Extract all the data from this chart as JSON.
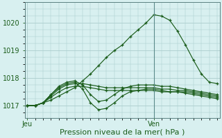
{
  "bg_color": "#d8f0f0",
  "grid_color": "#aacccc",
  "line_color": "#1a5c1a",
  "marker_color": "#1a5c1a",
  "xlabel": "Pression niveau de la mer( hPa )",
  "xlabel_color": "#1a5c1a",
  "tick_color": "#1a5c1a",
  "xtick_labels": [
    "Jeu",
    "Ven"
  ],
  "xtick_positions": [
    0,
    16
  ],
  "ylim": [
    1016.55,
    1020.75
  ],
  "yticks": [
    1017,
    1018,
    1019,
    1020
  ],
  "xlim": [
    -0.3,
    24.3
  ],
  "vline_x": 16,
  "series": [
    [
      1017.0,
      1017.0,
      1017.1,
      1017.2,
      1017.35,
      1017.5,
      1017.65,
      1017.9,
      1018.15,
      1018.45,
      1018.75,
      1019.0,
      1019.2,
      1019.5,
      1019.75,
      1020.0,
      1020.3,
      1020.25,
      1020.1,
      1019.7,
      1019.2,
      1018.65,
      1018.15,
      1017.85,
      1017.8
    ],
    [
      1017.0,
      1017.0,
      1017.1,
      1017.35,
      1017.6,
      1017.75,
      1017.8,
      1017.8,
      1017.75,
      1017.7,
      1017.65,
      1017.65,
      1017.65,
      1017.65,
      1017.65,
      1017.65,
      1017.65,
      1017.6,
      1017.6,
      1017.55,
      1017.55,
      1017.5,
      1017.45,
      1017.4,
      1017.35
    ],
    [
      1017.0,
      1017.0,
      1017.1,
      1017.3,
      1017.5,
      1017.65,
      1017.7,
      1017.7,
      1017.65,
      1017.6,
      1017.55,
      1017.55,
      1017.55,
      1017.55,
      1017.55,
      1017.55,
      1017.55,
      1017.5,
      1017.5,
      1017.5,
      1017.5,
      1017.45,
      1017.4,
      1017.35,
      1017.3
    ],
    [
      1017.0,
      1017.0,
      1017.1,
      1017.4,
      1017.65,
      1017.8,
      1017.85,
      1017.6,
      1017.1,
      1016.85,
      1016.9,
      1017.1,
      1017.35,
      1017.5,
      1017.55,
      1017.6,
      1017.6,
      1017.55,
      1017.5,
      1017.5,
      1017.45,
      1017.4,
      1017.35,
      1017.3,
      1017.25
    ],
    [
      1017.0,
      1017.0,
      1017.1,
      1017.4,
      1017.7,
      1017.85,
      1017.9,
      1017.75,
      1017.4,
      1017.15,
      1017.2,
      1017.4,
      1017.6,
      1017.7,
      1017.75,
      1017.75,
      1017.75,
      1017.7,
      1017.7,
      1017.65,
      1017.6,
      1017.55,
      1017.5,
      1017.45,
      1017.4
    ]
  ],
  "n_points": 25,
  "figsize": [
    3.2,
    2.0
  ],
  "dpi": 100
}
